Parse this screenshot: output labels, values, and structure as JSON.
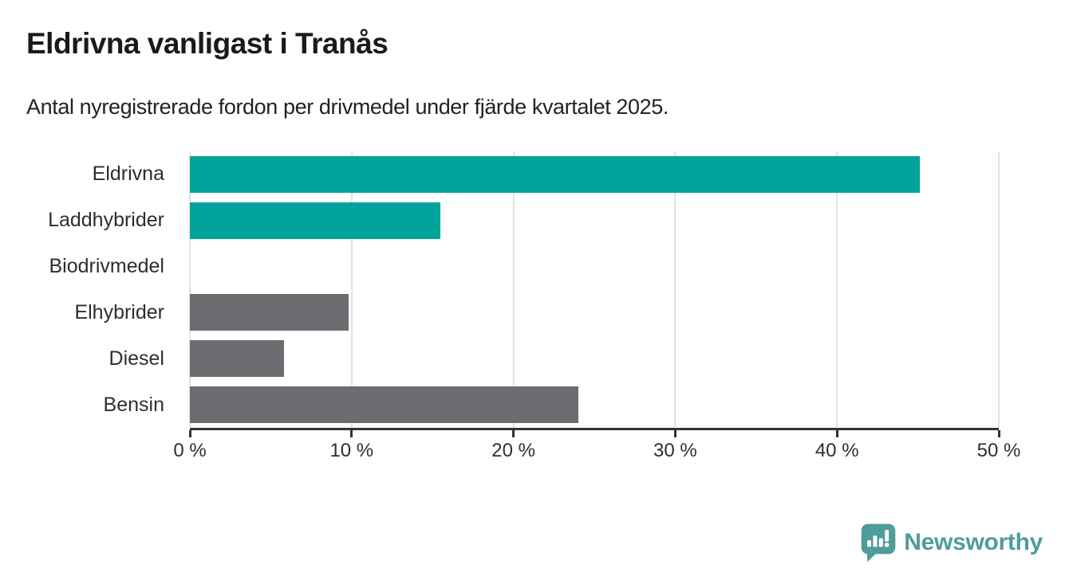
{
  "header": {
    "title": "Eldrivna vanligast i Tranås",
    "subtitle": "Antal nyregistrerade fordon per drivmedel under fjärde kvartalet 2025."
  },
  "chart_data": {
    "type": "bar",
    "orientation": "horizontal",
    "title": "Eldrivna vanligast i Tranås",
    "subtitle": "Antal nyregistrerade fordon per drivmedel under fjärde kvartalet 2025.",
    "categories": [
      "Eldrivna",
      "Laddhybrider",
      "Biodrivmedel",
      "Elhybrider",
      "Diesel",
      "Bensin"
    ],
    "values": [
      45.1,
      15.5,
      0,
      9.8,
      5.8,
      24
    ],
    "unit": "%",
    "bar_colors": [
      "#00A49A",
      "#00A49A",
      "#6C6C71",
      "#6C6C71",
      "#6C6C71",
      "#6C6C71"
    ],
    "xlim": [
      0,
      50
    ],
    "x_tick_values": [
      0,
      10,
      20,
      30,
      40,
      50
    ],
    "x_tick_labels": [
      "0 %",
      "10 %",
      "20 %",
      "30 %",
      "40 %",
      "50 %"
    ],
    "grid": "vertical",
    "gridline_color": "#E3E3E3",
    "axis_color": "#333333",
    "legend": "none"
  },
  "branding": {
    "logo_text": "Newsworthy",
    "logo_icon": "newsworthy-speech-bubble-bar-chart-icon",
    "logo_color": "#4E9C9B"
  },
  "colors": {
    "accent_teal": "#00A49A",
    "neutral_gray": "#6C6C71",
    "title_text": "#1A1A1A",
    "body_text": "#2E2E2E",
    "background": "#FFFFFF"
  }
}
